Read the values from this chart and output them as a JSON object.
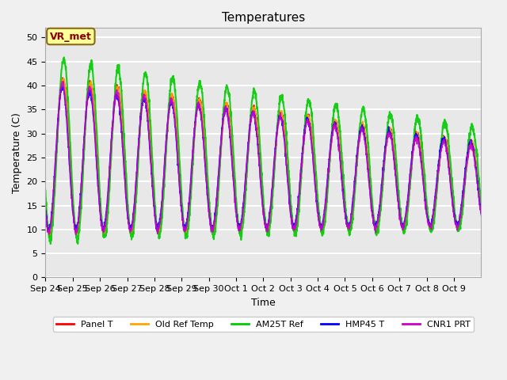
{
  "title": "Temperatures",
  "xlabel": "Time",
  "ylabel": "Temperature (C)",
  "ylim": [
    0,
    52
  ],
  "yticks": [
    0,
    5,
    10,
    15,
    20,
    25,
    30,
    35,
    40,
    45,
    50
  ],
  "series_order": [
    "Panel T",
    "Old Ref Temp",
    "AM25T Ref",
    "HMP45 T",
    "CNR1 PRT"
  ],
  "series": {
    "Panel T": {
      "color": "#ff0000",
      "lw": 1.2
    },
    "Old Ref Temp": {
      "color": "#ffa500",
      "lw": 1.2
    },
    "AM25T Ref": {
      "color": "#00cc00",
      "lw": 1.5
    },
    "HMP45 T": {
      "color": "#0000ff",
      "lw": 1.2
    },
    "CNR1 PRT": {
      "color": "#cc00cc",
      "lw": 1.2
    }
  },
  "xtick_positions": [
    0,
    1,
    2,
    3,
    4,
    5,
    6,
    7,
    8,
    9,
    10,
    11,
    12,
    13,
    14,
    15
  ],
  "xtick_labels": [
    "Sep 24",
    "Sep 25",
    "Sep 26",
    "Sep 27",
    "Sep 28",
    "Sep 29",
    "Sep 30",
    "Oct 1",
    "Oct 2",
    "Oct 3",
    "Oct 4",
    "Oct 5",
    "Oct 6",
    "Oct 7",
    "Oct 8",
    "Oct 9"
  ],
  "annotation_text": "VR_met",
  "background_color": "#e8e8e8",
  "fig_background_color": "#f0f0f0",
  "grid_color": "#ffffff",
  "title_fontsize": 11,
  "label_fontsize": 9,
  "tick_fontsize": 8
}
